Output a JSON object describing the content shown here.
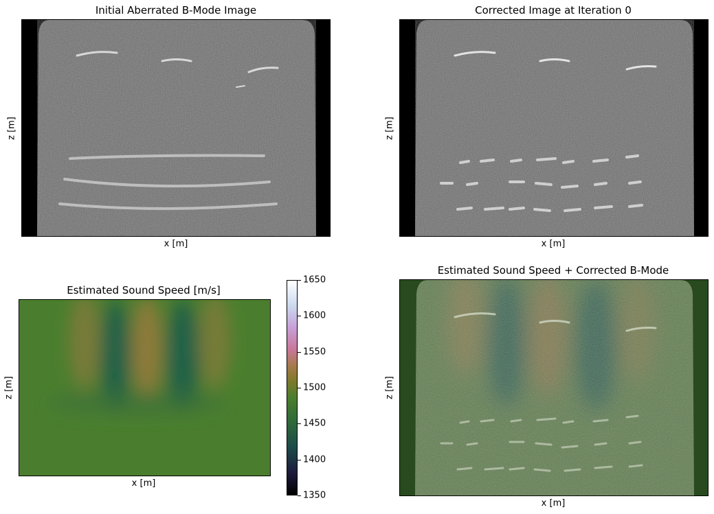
{
  "chart_data": [
    {
      "type": "heatmap",
      "title": "Initial Aberrated B-Mode Image",
      "xlabel": "x [m]",
      "ylabel": "z [m]",
      "colormap": "gray",
      "axis_ticks": "off"
    },
    {
      "type": "heatmap",
      "title": "Corrected Image at Iteration 0",
      "xlabel": "x [m]",
      "ylabel": "z [m]",
      "colormap": "gray",
      "axis_ticks": "off"
    },
    {
      "type": "heatmap",
      "title": "Estimated Sound Speed [m/s]",
      "xlabel": "x [m]",
      "ylabel": "z [m]",
      "colormap": "cubehelix",
      "colorbar": {
        "min": 1350,
        "max": 1650,
        "ticks": [
          "1350",
          "1400",
          "1450",
          "1500",
          "1550",
          "1600",
          "1650"
        ]
      },
      "axis_ticks": "off"
    },
    {
      "type": "heatmap",
      "title": "Estimated Sound Speed + Corrected B-Mode",
      "xlabel": "x [m]",
      "ylabel": "z [m]",
      "overlay": "sound speed over B-mode",
      "axis_ticks": "off"
    }
  ],
  "colors": {
    "background_green": "#4a7e2e",
    "slow_region": "#1f5e4a",
    "fast_region": "#8a7a3c",
    "bmode_gray": "#7a7a7a"
  }
}
